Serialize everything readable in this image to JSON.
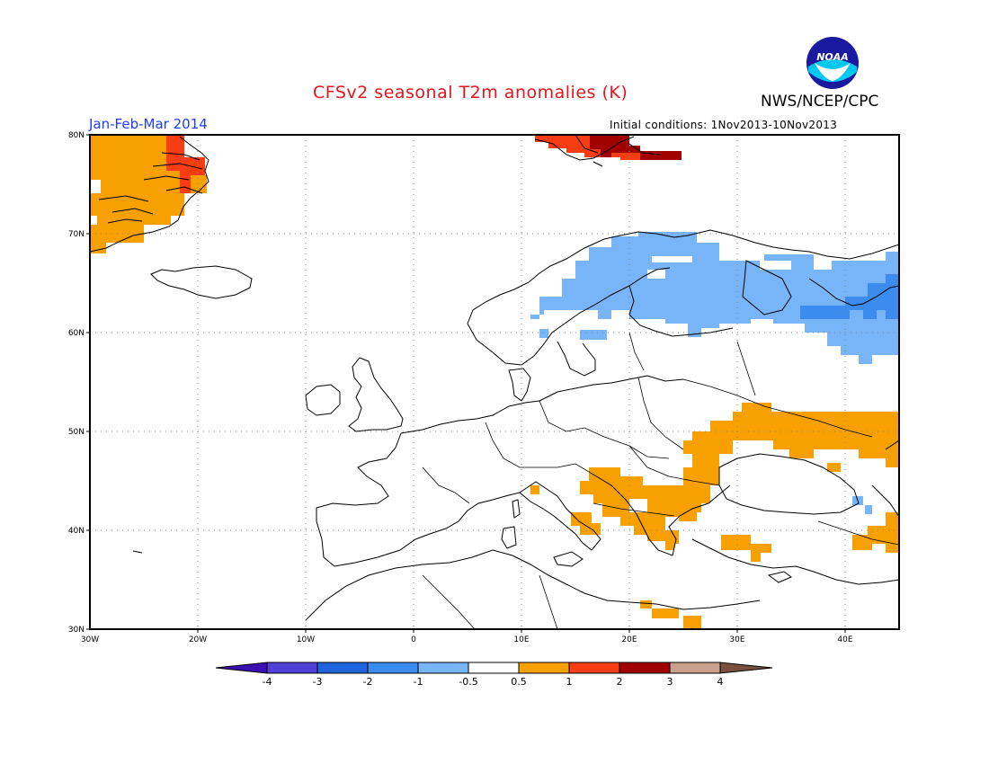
{
  "title": "CFSv2 seasonal T2m anomalies (K)",
  "agency": "NWS/NCEP/CPC",
  "logo_text": "NOAA",
  "season": "Jan-Feb-Mar 2014",
  "initial_conditions": "Initial conditions: 1Nov2013-10Nov2013",
  "lat_labels": [
    "80N",
    "70N",
    "60N",
    "50N",
    "40N",
    "30N"
  ],
  "lon_labels": [
    "30W",
    "20W",
    "10W",
    "0",
    "10E",
    "20E",
    "30E",
    "40E"
  ],
  "colorbar": {
    "labels": [
      "-4",
      "-3",
      "-2",
      "-1",
      "-0.5",
      "0.5",
      "1",
      "2",
      "3",
      "4"
    ],
    "colors": [
      "#3a10b0",
      "#5040d8",
      "#1e64dc",
      "#3c8cf0",
      "#78b4f8",
      "#ffffff",
      "#f8a000",
      "#f83c14",
      "#a00000",
      "#c8a08c",
      "#785040"
    ]
  },
  "anomaly_colors": {
    "light_blue": "#78b4f8",
    "mid_blue": "#3c8cf0",
    "orange": "#f8a000",
    "red": "#f83c14",
    "dark_red": "#a00000"
  }
}
